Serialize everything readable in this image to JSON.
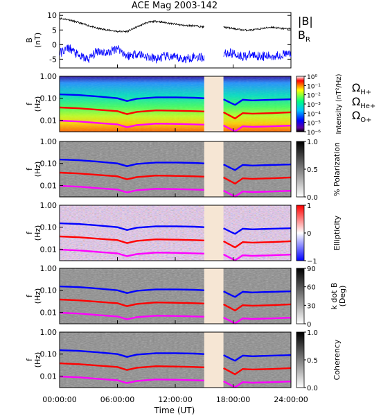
{
  "title": "ACE Mag 2003-142",
  "xlabel": "Time (UT)",
  "x_ticks": [
    "00:00:00",
    "06:00:00",
    "12:00:00",
    "18:00:00",
    "24:00:00"
  ],
  "data_gap_hours": [
    15.0,
    17.0
  ],
  "colors": {
    "btot": "#000000",
    "br": "#0000ff",
    "h_plus": "#0000ff",
    "he_plus": "#ff0000",
    "o_plus": "#ff00ff",
    "gap_fill": "#f6e6d4"
  },
  "chart_data": [
    {
      "type": "line",
      "ylabel_1": "B",
      "ylabel_2": "(nT)",
      "ylim": [
        -8,
        11
      ],
      "yticks": [
        -5,
        0,
        5,
        10
      ],
      "legend": [
        "|B|",
        "B_R"
      ],
      "series": [
        {
          "name": "|B|",
          "x": [
            0,
            1,
            2,
            3,
            4,
            5,
            6,
            7,
            8,
            9,
            10,
            11,
            12,
            13,
            14,
            15,
            17,
            18,
            19,
            20,
            21,
            22,
            23,
            24
          ],
          "values": [
            9,
            8.5,
            7.5,
            6.5,
            5.5,
            5,
            4.5,
            4.5,
            6,
            7.5,
            8,
            7.5,
            7,
            6.5,
            6.5,
            6,
            6,
            5.5,
            5,
            5,
            5.5,
            6,
            5.5,
            5.5
          ]
        },
        {
          "name": "B_R",
          "x": [
            0,
            1,
            2,
            3,
            4,
            5,
            6,
            7,
            8,
            9,
            10,
            11,
            12,
            13,
            14,
            15,
            17,
            18,
            19,
            20,
            21,
            22,
            23,
            24
          ],
          "values": [
            -3,
            -1,
            -4,
            -5,
            -2,
            -3,
            -1,
            -4,
            -3,
            -4,
            -5,
            -4,
            -4.5,
            -5,
            -4,
            -4.5,
            -3,
            -3,
            -4,
            -3.5,
            -4,
            -4,
            -3.5,
            -3
          ]
        }
      ]
    },
    {
      "type": "heatmap",
      "ylabel_1": "f",
      "ylabel_2": "(Hz)",
      "colorbar_label": "Intensity (nT²/Hz)",
      "colorbar_ticks": [
        "10⁰",
        "10⁻¹",
        "10⁻²",
        "10⁻³",
        "10⁻⁴",
        "10⁻⁵",
        "10⁻⁶"
      ],
      "legend": [
        "ΩH+",
        "ΩHe+",
        "ΩO+"
      ]
    },
    {
      "type": "heatmap",
      "ylabel_1": "f",
      "ylabel_2": "(Hz)",
      "colorbar_label": "% Polarization",
      "colorbar_ticks": [
        "1.0",
        "0.5",
        "0.0"
      ]
    },
    {
      "type": "heatmap",
      "ylabel_1": "f",
      "ylabel_2": "(Hz)",
      "colorbar_label": "Ellipticity",
      "colorbar_ticks": [
        "1",
        "0",
        "−1"
      ]
    },
    {
      "type": "heatmap",
      "ylabel_1": "f",
      "ylabel_2": "(Hz)",
      "colorbar_label_1": "k dot B",
      "colorbar_label_2": "(Deg)",
      "colorbar_ticks": [
        "90",
        "60",
        "30",
        "0"
      ]
    },
    {
      "type": "heatmap",
      "ylabel_1": "f",
      "ylabel_2": "(Hz)",
      "colorbar_label": "Coherency",
      "colorbar_ticks": [
        "1.0",
        "0.5",
        "0.0"
      ]
    }
  ],
  "spectrogram_yticks": [
    "1.00",
    "0.10",
    "0.01"
  ],
  "gyrofrequency_lines": {
    "x": [
      0,
      2,
      4,
      6,
      7,
      8,
      10,
      12,
      14,
      15,
      17,
      17.8,
      18.2,
      19,
      20,
      22,
      24
    ],
    "h_plus": [
      0.15,
      0.14,
      0.12,
      0.1,
      0.075,
      0.095,
      0.11,
      0.11,
      0.105,
      0.1,
      0.09,
      0.06,
      0.05,
      0.085,
      0.08,
      0.085,
      0.09
    ],
    "he_plus": [
      0.038,
      0.035,
      0.03,
      0.026,
      0.019,
      0.024,
      0.028,
      0.027,
      0.026,
      0.025,
      0.023,
      0.015,
      0.012,
      0.021,
      0.02,
      0.021,
      0.023
    ],
    "o_plus": [
      0.0095,
      0.0088,
      0.0075,
      0.0065,
      0.0048,
      0.006,
      0.007,
      0.0068,
      0.0065,
      0.0063,
      0.0058,
      0.0038,
      0.0031,
      0.0053,
      0.005,
      0.0053,
      0.0057
    ]
  }
}
